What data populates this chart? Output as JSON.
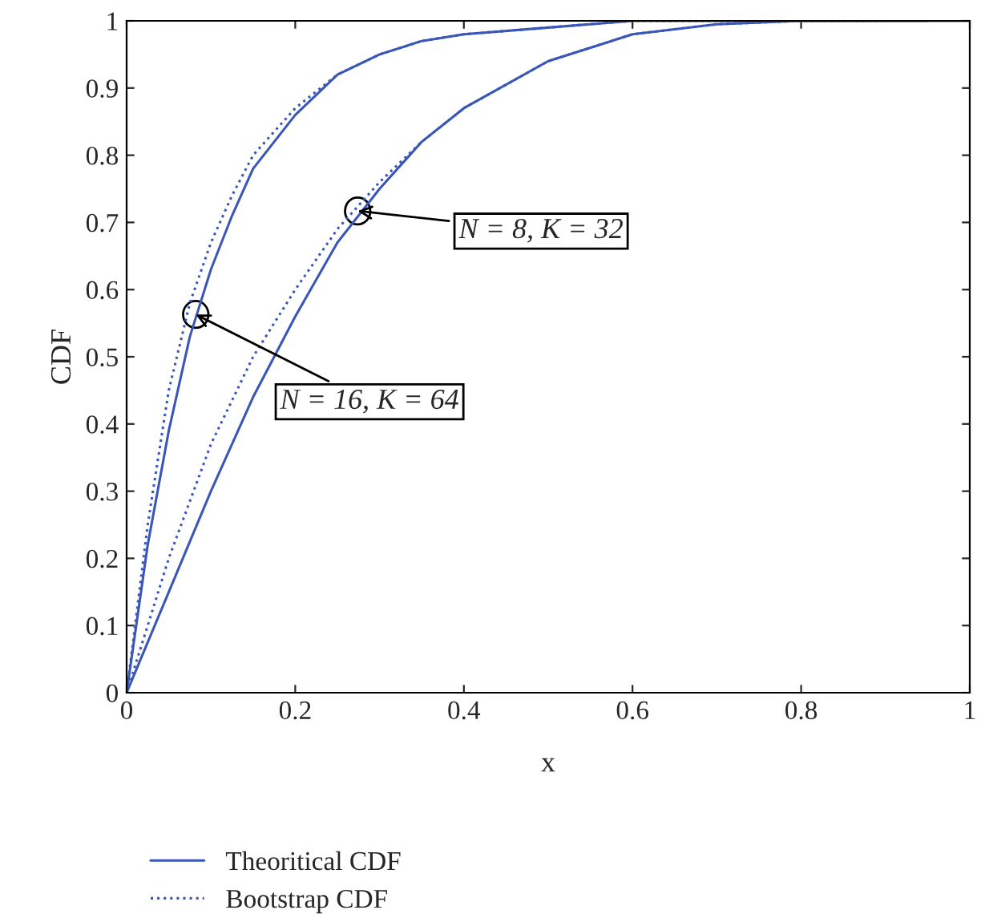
{
  "chart_data": {
    "type": "line",
    "xlabel": "x",
    "ylabel": "CDF",
    "xlim": [
      0,
      1
    ],
    "ylim": [
      0,
      1
    ],
    "xticks": [
      0,
      0.2,
      0.4,
      0.6,
      0.8,
      1
    ],
    "yticks": [
      0,
      0.1,
      0.2,
      0.3,
      0.4,
      0.5,
      0.6,
      0.7,
      0.8,
      0.9,
      1
    ],
    "grid": false,
    "legend": "bottom",
    "series": [
      {
        "name": "Theoritical CDF",
        "color": "#3a56b8",
        "line_style": "solid",
        "x": [
          0,
          0.025,
          0.05,
          0.075,
          0.1,
          0.125,
          0.15,
          0.2,
          0.25,
          0.3,
          0.35,
          0.4,
          0.5,
          0.6,
          0.95
        ],
        "values": [
          0,
          0.22,
          0.39,
          0.53,
          0.63,
          0.71,
          0.78,
          0.86,
          0.92,
          0.95,
          0.97,
          0.98,
          0.99,
          1,
          1
        ]
      },
      {
        "name": "Bootstrap CDF",
        "color": "#3a56b8",
        "line_style": "dotted",
        "x": [
          0,
          0.025,
          0.05,
          0.075,
          0.1,
          0.125,
          0.15,
          0.2,
          0.25,
          0.3,
          0.35,
          0.4,
          0.5,
          0.6,
          0.85
        ],
        "values": [
          0,
          0.25,
          0.45,
          0.58,
          0.67,
          0.74,
          0.8,
          0.87,
          0.92,
          0.95,
          0.97,
          0.98,
          0.99,
          1,
          1
        ]
      },
      {
        "color": "#3a56b8",
        "line_style": "solid",
        "x": [
          0,
          0.05,
          0.1,
          0.15,
          0.2,
          0.25,
          0.3,
          0.35,
          0.4,
          0.5,
          0.6,
          0.7,
          0.8,
          1.0
        ],
        "values": [
          0,
          0.15,
          0.3,
          0.44,
          0.56,
          0.67,
          0.75,
          0.82,
          0.87,
          0.94,
          0.98,
          0.995,
          1,
          1
        ]
      },
      {
        "color": "#3a56b8",
        "line_style": "dotted",
        "x": [
          0,
          0.05,
          0.1,
          0.15,
          0.2,
          0.25,
          0.3,
          0.35,
          0.4,
          0.5,
          0.6,
          0.7,
          0.8,
          0.9
        ],
        "values": [
          0,
          0.2,
          0.37,
          0.5,
          0.6,
          0.69,
          0.76,
          0.82,
          0.87,
          0.94,
          0.98,
          0.995,
          1,
          1
        ]
      }
    ],
    "annotations": [
      {
        "text": "N = 8, K = 32",
        "x": 0.274,
        "y": 0.717
      },
      {
        "text": "N = 16, K = 64",
        "x": 0.082,
        "y": 0.563
      }
    ]
  }
}
